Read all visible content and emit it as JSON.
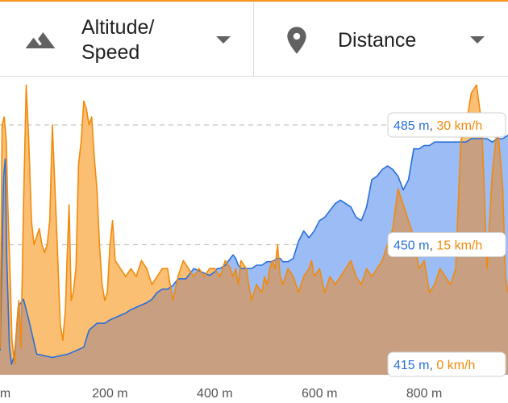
{
  "toolbar": {
    "left": {
      "icon": "terrain-icon",
      "label_line1": "Altitude/",
      "label_line2": "Speed"
    },
    "right": {
      "icon": "map-pin-icon",
      "label": "Distance"
    }
  },
  "colors": {
    "altitude": "#2a6fdb",
    "altitude_fill": "#9bbcf5",
    "speed": "#f28a0a",
    "speed_fill": "#fbbf73",
    "overlap_fill": "#c89f80",
    "accent": "#f7931e"
  },
  "chart_data": {
    "type": "area",
    "title": "",
    "xlabel": "",
    "ylabel": "",
    "xlim": [
      -10,
      960
    ],
    "x_tick_labels": [
      "m",
      "200 m",
      "400 m",
      "600 m",
      "800 m"
    ],
    "x_ticks": [
      0,
      200,
      400,
      600,
      800
    ],
    "gridlines": [
      {
        "altitude_label": "485 m",
        "speed_label": "30 km/h",
        "altitude": 485,
        "speed": 30
      },
      {
        "altitude_label": "450 m",
        "speed_label": "15 km/h",
        "altitude": 450,
        "speed": 15
      },
      {
        "altitude_label": "415 m",
        "speed_label": "0 km/h",
        "altitude": 415,
        "speed": 0
      }
    ],
    "series": [
      {
        "axis": "Altitude",
        "unit": "m",
        "x": [
          -10,
          -7,
          -3,
          0,
          3,
          8,
          12,
          18,
          25,
          35,
          45,
          60,
          90,
          120,
          150,
          160,
          175,
          190,
          200,
          215,
          230,
          240,
          255,
          270,
          280,
          290,
          300,
          310,
          320,
          330,
          345,
          360,
          375,
          390,
          400,
          405,
          410,
          420,
          430,
          435,
          440,
          445,
          450,
          455,
          460,
          470,
          480,
          490,
          500,
          510,
          520,
          525,
          530,
          540,
          550,
          560,
          570,
          580,
          590,
          600,
          610,
          620,
          630,
          640,
          650,
          660,
          670,
          680,
          690,
          700,
          710,
          720,
          730,
          740,
          750,
          760,
          770,
          780,
          790,
          800,
          810,
          820,
          830,
          840,
          850,
          860,
          870,
          880,
          890,
          900,
          910,
          920,
          930,
          940,
          950,
          960
        ],
        "y": [
          419,
          440,
          470,
          475,
          446,
          420,
          415,
          418,
          432,
          434,
          428,
          418,
          417,
          418,
          420,
          425,
          427,
          427,
          428,
          429,
          430,
          431,
          432,
          433,
          434,
          436,
          437,
          437,
          438,
          440,
          440,
          443,
          442,
          441,
          442,
          443,
          443,
          444,
          446,
          447,
          446,
          444,
          443,
          443,
          443,
          443,
          444,
          444,
          445,
          445,
          446,
          446,
          445,
          445,
          446,
          451,
          454,
          452,
          454,
          457,
          458,
          460,
          462,
          463,
          462,
          461,
          458,
          457,
          461,
          469,
          470,
          472,
          473,
          472,
          470,
          466,
          469,
          478,
          478,
          479,
          479,
          480,
          480,
          480,
          480,
          480,
          480,
          480,
          481,
          481,
          481,
          481,
          480,
          481,
          481,
          482
        ]
      },
      {
        "axis": "Speed",
        "unit": "km/h",
        "x": [
          -10,
          -6,
          -2,
          2,
          5,
          9,
          13,
          18,
          22,
          26,
          30,
          35,
          40,
          45,
          50,
          55,
          60,
          65,
          70,
          75,
          80,
          85,
          90,
          95,
          100,
          105,
          110,
          115,
          118,
          122,
          126,
          130,
          135,
          140,
          145,
          150,
          155,
          160,
          165,
          170,
          175,
          180,
          185,
          190,
          195,
          200,
          205,
          210,
          220,
          230,
          240,
          250,
          260,
          270,
          280,
          290,
          300,
          310,
          320,
          330,
          340,
          350,
          360,
          370,
          380,
          390,
          400,
          410,
          420,
          430,
          435,
          440,
          445,
          450,
          460,
          470,
          480,
          490,
          495,
          500,
          505,
          510,
          515,
          520,
          525,
          530,
          540,
          550,
          560,
          570,
          580,
          585,
          590,
          600,
          610,
          620,
          630,
          640,
          650,
          660,
          670,
          680,
          690,
          700,
          710,
          720,
          730,
          740,
          750,
          760,
          770,
          780,
          790,
          800,
          810,
          820,
          830,
          840,
          850,
          860,
          870,
          880,
          890,
          900,
          910,
          920,
          930,
          940,
          950,
          955,
          960
        ],
        "y": [
          2,
          30,
          31,
          28,
          20,
          12,
          3,
          0,
          5,
          8,
          2,
          20,
          35,
          28,
          18,
          15,
          16,
          17,
          15,
          14,
          15,
          18,
          30,
          22,
          14,
          5,
          3,
          7,
          13,
          20,
          8,
          9,
          12,
          25,
          28,
          33,
          32,
          30,
          31,
          26,
          22,
          15,
          10,
          8,
          9,
          15,
          18,
          13,
          12,
          11,
          12,
          11,
          13,
          12,
          10,
          11,
          12,
          12,
          8,
          11,
          13,
          12,
          11,
          12,
          11,
          12,
          12,
          11,
          13,
          12,
          11,
          12,
          10,
          13,
          12,
          8,
          10,
          9,
          11,
          10,
          12,
          13,
          12,
          15,
          11,
          10,
          12,
          11,
          9,
          11,
          12,
          13,
          11,
          12,
          9,
          11,
          10,
          11,
          12,
          13,
          11,
          10,
          12,
          11,
          12,
          13,
          15,
          17,
          22,
          20,
          18,
          16,
          12,
          13,
          9,
          10,
          12,
          11,
          10,
          12,
          28,
          30,
          34,
          35,
          30,
          12,
          24,
          30,
          22,
          11,
          9
        ]
      }
    ]
  }
}
